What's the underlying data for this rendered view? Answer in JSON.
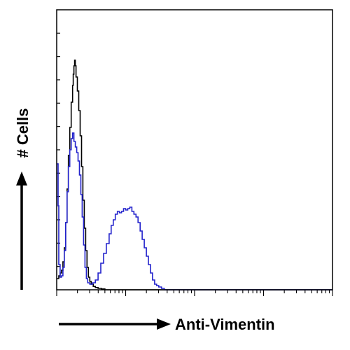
{
  "chart_data": {
    "type": "line",
    "title": "",
    "xlabel": "Anti-Vimentin",
    "ylabel": "# Cells",
    "x_scale": "log",
    "x_decades": 4,
    "ylim": [
      0,
      10
    ],
    "grid": false,
    "legend": "none",
    "series": [
      {
        "color": "#000000",
        "points": [
          [
            0.0,
            0.4
          ],
          [
            0.03,
            0.5
          ],
          [
            0.05,
            0.6
          ],
          [
            0.07,
            0.7
          ],
          [
            0.09,
            1.0
          ],
          [
            0.11,
            1.5
          ],
          [
            0.13,
            2.4
          ],
          [
            0.15,
            3.6
          ],
          [
            0.17,
            4.8
          ],
          [
            0.19,
            5.8
          ],
          [
            0.21,
            6.7
          ],
          [
            0.23,
            7.3
          ],
          [
            0.24,
            7.7
          ],
          [
            0.25,
            8.0
          ],
          [
            0.26,
            8.2
          ],
          [
            0.27,
            8.0
          ],
          [
            0.28,
            7.6
          ],
          [
            0.3,
            7.1
          ],
          [
            0.32,
            6.4
          ],
          [
            0.34,
            5.5
          ],
          [
            0.36,
            4.4
          ],
          [
            0.38,
            3.2
          ],
          [
            0.4,
            2.2
          ],
          [
            0.42,
            1.4
          ],
          [
            0.44,
            0.8
          ],
          [
            0.46,
            0.45
          ],
          [
            0.48,
            0.3
          ],
          [
            0.5,
            0.2
          ],
          [
            0.53,
            0.12
          ],
          [
            0.56,
            0.08
          ],
          [
            0.6,
            0.05
          ],
          [
            0.65,
            0.03
          ],
          [
            0.7,
            0.0
          ]
        ]
      },
      {
        "color": "#2222cc",
        "points": [
          [
            0.0,
            4.5
          ],
          [
            0.02,
            3.0
          ],
          [
            0.03,
            0.9
          ],
          [
            0.05,
            0.45
          ],
          [
            0.07,
            0.5
          ],
          [
            0.09,
            0.8
          ],
          [
            0.11,
            1.4
          ],
          [
            0.13,
            2.4
          ],
          [
            0.15,
            3.5
          ],
          [
            0.17,
            4.4
          ],
          [
            0.19,
            5.0
          ],
          [
            0.21,
            5.4
          ],
          [
            0.23,
            5.6
          ],
          [
            0.25,
            5.3
          ],
          [
            0.27,
            5.1
          ],
          [
            0.29,
            4.9
          ],
          [
            0.31,
            4.6
          ],
          [
            0.33,
            4.1
          ],
          [
            0.35,
            3.4
          ],
          [
            0.37,
            2.6
          ],
          [
            0.39,
            1.6
          ],
          [
            0.41,
            0.8
          ],
          [
            0.43,
            0.4
          ],
          [
            0.45,
            0.25
          ],
          [
            0.48,
            0.2
          ],
          [
            0.52,
            0.25
          ],
          [
            0.56,
            0.35
          ],
          [
            0.6,
            0.6
          ],
          [
            0.64,
            0.95
          ],
          [
            0.68,
            1.3
          ],
          [
            0.72,
            1.65
          ],
          [
            0.76,
            2.0
          ],
          [
            0.79,
            2.3
          ],
          [
            0.82,
            2.5
          ],
          [
            0.85,
            2.7
          ],
          [
            0.88,
            2.8
          ],
          [
            0.91,
            2.75
          ],
          [
            0.94,
            2.8
          ],
          [
            0.97,
            2.9
          ],
          [
            1.0,
            2.85
          ],
          [
            1.03,
            2.9
          ],
          [
            1.06,
            2.95
          ],
          [
            1.09,
            2.8
          ],
          [
            1.12,
            2.7
          ],
          [
            1.15,
            2.6
          ],
          [
            1.18,
            2.4
          ],
          [
            1.21,
            2.1
          ],
          [
            1.24,
            1.8
          ],
          [
            1.27,
            1.5
          ],
          [
            1.3,
            1.2
          ],
          [
            1.33,
            0.9
          ],
          [
            1.36,
            0.6
          ],
          [
            1.39,
            0.35
          ],
          [
            1.42,
            0.2
          ],
          [
            1.45,
            0.15
          ],
          [
            1.48,
            0.1
          ],
          [
            1.52,
            0.05
          ],
          [
            1.56,
            0.0
          ]
        ]
      }
    ]
  }
}
